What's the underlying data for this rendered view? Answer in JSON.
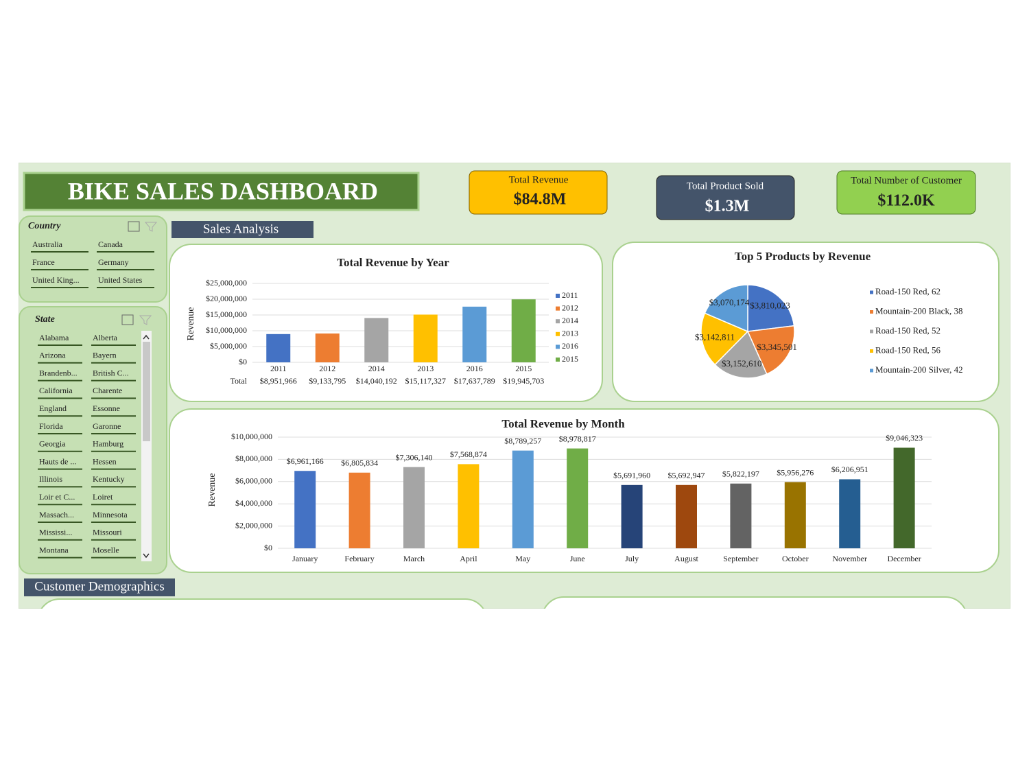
{
  "header": {
    "title": "BIKE SALES DASHBOARD"
  },
  "kpis": [
    {
      "label": "Total Revenue",
      "value": "$84.8M"
    },
    {
      "label": "Total Product Sold",
      "value": "$1.3M"
    },
    {
      "label": "Total Number of Customer",
      "value": "$112.0K"
    }
  ],
  "sections": [
    "Sales Analysis",
    "Customer Demographics"
  ],
  "slicers": [
    {
      "title": "Country",
      "items": [
        "Australia",
        "Canada",
        "France",
        "Germany",
        "United King...",
        "United States"
      ]
    },
    {
      "title": "State",
      "items": [
        "Alabama",
        "Alberta",
        "Arizona",
        "Bayern",
        "Brandenb...",
        "British C...",
        "California",
        "Charente",
        "England",
        "Essonne",
        "Florida",
        "Garonne",
        "Georgia",
        "Hamburg",
        "Hauts de ...",
        "Hessen",
        "Illinois",
        "Kentucky",
        "Loir et C...",
        "Loiret",
        "Massach...",
        "Minnesota",
        "Mississi...",
        "Missouri",
        "Montana",
        "Moselle"
      ]
    }
  ],
  "chart_data": [
    {
      "type": "bar",
      "title": "Total Revenue by Year",
      "y_label": "Revenue",
      "table_row_label": "Total",
      "categories": [
        "2011",
        "2012",
        "2014",
        "2013",
        "2016",
        "2015"
      ],
      "values": [
        8951966,
        9133795,
        14040192,
        15117327,
        17637789,
        19945703
      ],
      "value_labels": [
        "$8,951,966",
        "$9,133,795",
        "$14,040,192",
        "$15,117,327",
        "$17,637,789",
        "$19,945,703"
      ],
      "colors": [
        "#4472c4",
        "#ed7d31",
        "#a5a5a5",
        "#ffc000",
        "#5b9bd5",
        "#70ad47"
      ],
      "ylim": [
        0,
        25000000
      ],
      "yticks": [
        {
          "value": 0,
          "label": "$0"
        },
        {
          "value": 5000000,
          "label": "$5,000,000"
        },
        {
          "value": 10000000,
          "label": "$10,000,000"
        },
        {
          "value": 15000000,
          "label": "$15,000,000"
        },
        {
          "value": 20000000,
          "label": "$20,000,000"
        },
        {
          "value": 25000000,
          "label": "$25,000,000"
        }
      ],
      "grid": true,
      "legend": "right"
    },
    {
      "type": "pie",
      "title": "Top 5 Products by Revenue",
      "labels": [
        "Road-150 Red, 62",
        "Mountain-200 Black, 38",
        "Road-150 Red, 52",
        "Road-150 Red, 56",
        "Mountain-200 Silver, 42"
      ],
      "values": [
        3810023,
        3345501,
        3152610,
        3142811,
        3070174
      ],
      "value_labels": [
        "$3,810,023",
        "$3,345,501",
        "$3,152,610",
        "$3,142,811",
        "$3,070,174"
      ],
      "colors": [
        "#4472c4",
        "#ed7d31",
        "#a5a5a5",
        "#ffc000",
        "#5b9bd5"
      ],
      "legend": "right"
    },
    {
      "type": "bar",
      "title": "Total Revenue by Month",
      "y_label": "Revenue",
      "categories": [
        "January",
        "February",
        "March",
        "April",
        "May",
        "June",
        "July",
        "August",
        "September",
        "October",
        "November",
        "December"
      ],
      "values": [
        6961166,
        6805834,
        7306140,
        7568874,
        8789257,
        8978817,
        5691960,
        5692947,
        5822197,
        5956276,
        6206951,
        9046323
      ],
      "value_labels": [
        "$6,961,166",
        "$6,805,834",
        "$7,306,140",
        "$7,568,874",
        "$8,789,257",
        "$8,978,817",
        "$5,691,960",
        "$5,692,947",
        "$5,822,197",
        "$5,956,276",
        "$6,206,951",
        "$9,046,323"
      ],
      "colors": [
        "#4472c4",
        "#ed7d31",
        "#a5a5a5",
        "#ffc000",
        "#5b9bd5",
        "#70ad47",
        "#264478",
        "#9e480e",
        "#636363",
        "#997300",
        "#255e91",
        "#43682b"
      ],
      "ylim": [
        0,
        10000000
      ],
      "yticks": [
        {
          "value": 0,
          "label": "$0"
        },
        {
          "value": 2000000,
          "label": "$2,000,000"
        },
        {
          "value": 4000000,
          "label": "$4,000,000"
        },
        {
          "value": 6000000,
          "label": "$6,000,000"
        },
        {
          "value": 8000000,
          "label": "$8,000,000"
        },
        {
          "value": 10000000,
          "label": "$10,000,000"
        }
      ],
      "grid": true
    }
  ]
}
